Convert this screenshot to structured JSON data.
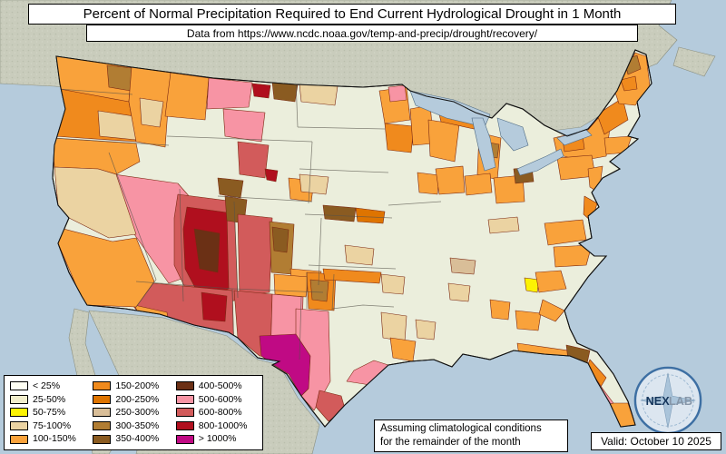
{
  "title": "Percent of Normal Precipitation Required to End Current Hydrological Drought in 1 Month",
  "subtitle": "Data from https://www.ncdc.noaa.gov/temp-and-precip/drought/recovery/",
  "legend": {
    "items": [
      {
        "label": "< 25%",
        "color": "#FFFFF4"
      },
      {
        "label": "25-50%",
        "color": "#F2EECC"
      },
      {
        "label": "50-75%",
        "color": "#FCF303"
      },
      {
        "label": "75-100%",
        "color": "#EBD3A2"
      },
      {
        "label": "100-150%",
        "color": "#F9A23B"
      },
      {
        "label": "150-200%",
        "color": "#F08A1D"
      },
      {
        "label": "200-250%",
        "color": "#DE7400"
      },
      {
        "label": "250-300%",
        "color": "#D9BE98"
      },
      {
        "label": "300-350%",
        "color": "#B17D33"
      },
      {
        "label": "350-400%",
        "color": "#8A5B21"
      },
      {
        "label": "400-500%",
        "color": "#6B3015"
      },
      {
        "label": "500-600%",
        "color": "#F794A4"
      },
      {
        "label": "600-800%",
        "color": "#D25B5B"
      },
      {
        "label": "800-1000%",
        "color": "#B00F1E"
      },
      {
        "label": "> 1000%",
        "color": "#C00A84"
      }
    ]
  },
  "note_line1": "Assuming climatological conditions",
  "note_line2": "for the remainder of the month",
  "valid_label": "Valid: October 10 2025",
  "logo": {
    "primary": "NEX",
    "secondary": "LAB"
  },
  "map_colors": {
    "ocean": "#B5CBDC",
    "land_neighbor": "#C9CCBC",
    "us_base": "#EBEEDC",
    "border_state": "#55524a",
    "border_division": "#7A2812",
    "lake": "#B5CBDC",
    "coast": "#111111"
  }
}
